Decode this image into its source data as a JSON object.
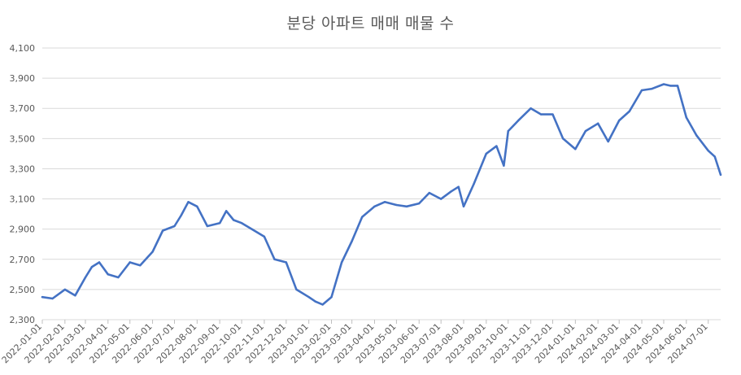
{
  "chart_data": {
    "type": "line",
    "title": "분당 아파트 매매 매물 수",
    "ylim": [
      2300,
      4100
    ],
    "yticks": [
      "2,300",
      "2,500",
      "2,700",
      "2,900",
      "3,100",
      "3,300",
      "3,500",
      "3,700",
      "3,900",
      "4,100"
    ],
    "ytick_values": [
      2300,
      2500,
      2700,
      2900,
      3100,
      3300,
      3500,
      3700,
      3900,
      4100
    ],
    "xlim": [
      "2022-01-01",
      "2024-07-18"
    ],
    "xticks": [
      "2022-01-01",
      "2022-02-01",
      "2022-03-01",
      "2022-04-01",
      "2022-05-01",
      "2022-06-01",
      "2022-07-01",
      "2022-08-01",
      "2022-09-01",
      "2022-10-01",
      "2022-11-01",
      "2022-12-01",
      "2023-01-01",
      "2023-02-01",
      "2023-03-01",
      "2023-04-01",
      "2023-05-01",
      "2023-06-01",
      "2023-07-01",
      "2023-08-01",
      "2023-09-01",
      "2023-10-01",
      "2023-11-01",
      "2023-12-01",
      "2024-01-01",
      "2024-02-01",
      "2024-03-01",
      "2024-04-01",
      "2024-05-01",
      "2024-06-01",
      "2024-07-01"
    ],
    "grid": true,
    "line_color": "#4472C4",
    "series": [
      {
        "x": [
          "2022-01-01",
          "2022-01-15",
          "2022-02-01",
          "2022-02-15",
          "2022-03-01",
          "2022-03-10",
          "2022-03-20",
          "2022-04-01",
          "2022-04-15",
          "2022-05-01",
          "2022-05-15",
          "2022-06-01",
          "2022-06-15",
          "2022-07-01",
          "2022-07-10",
          "2022-07-20",
          "2022-08-01",
          "2022-08-15",
          "2022-09-01",
          "2022-09-10",
          "2022-09-20",
          "2022-10-01",
          "2022-10-15",
          "2022-11-01",
          "2022-11-15",
          "2022-12-01",
          "2022-12-15",
          "2023-01-01",
          "2023-01-10",
          "2023-01-20",
          "2023-02-01",
          "2023-02-15",
          "2023-03-01",
          "2023-03-15",
          "2023-04-01",
          "2023-04-15",
          "2023-05-01",
          "2023-05-15",
          "2023-06-01",
          "2023-06-15",
          "2023-07-01",
          "2023-07-15",
          "2023-07-25",
          "2023-08-01",
          "2023-08-15",
          "2023-09-01",
          "2023-09-15",
          "2023-09-25",
          "2023-10-01",
          "2023-10-15",
          "2023-11-01",
          "2023-11-15",
          "2023-12-01",
          "2023-12-15",
          "2024-01-01",
          "2024-01-15",
          "2024-02-01",
          "2024-02-15",
          "2024-03-01",
          "2024-03-15",
          "2024-04-01",
          "2024-04-15",
          "2024-05-01",
          "2024-05-10",
          "2024-05-20",
          "2024-06-01",
          "2024-06-15",
          "2024-07-01",
          "2024-07-10",
          "2024-07-18"
        ],
        "values": [
          2450,
          2440,
          2500,
          2460,
          2580,
          2650,
          2680,
          2600,
          2580,
          2680,
          2660,
          2750,
          2890,
          2920,
          2990,
          3080,
          3050,
          2920,
          2940,
          3020,
          2960,
          2940,
          2900,
          2850,
          2700,
          2680,
          2500,
          2450,
          2420,
          2400,
          2450,
          2680,
          2820,
          2980,
          3050,
          3080,
          3060,
          3050,
          3070,
          3140,
          3100,
          3150,
          3180,
          3050,
          3200,
          3400,
          3450,
          3320,
          3550,
          3620,
          3700,
          3660,
          3660,
          3500,
          3430,
          3550,
          3600,
          3480,
          3620,
          3680,
          3820,
          3830,
          3860,
          3850,
          3850,
          3640,
          3520,
          3420,
          3380,
          3260
        ]
      }
    ]
  }
}
